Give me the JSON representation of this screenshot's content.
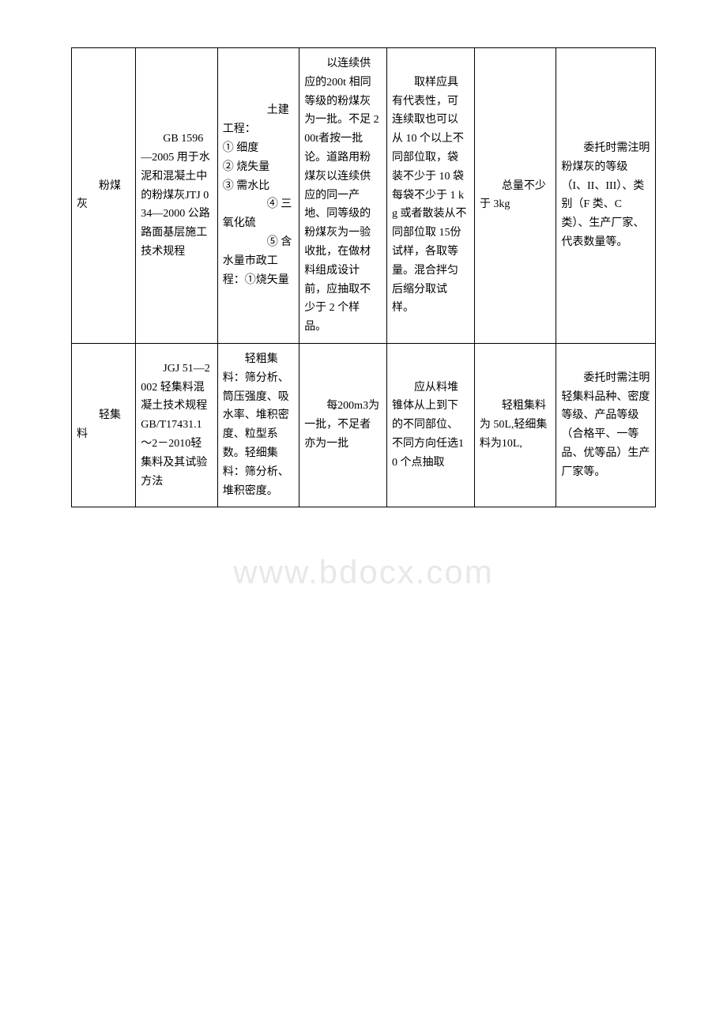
{
  "watermark": "www.bdocx.com",
  "table": {
    "columns_count": 7,
    "border_color": "#000000",
    "background_color": "#ffffff",
    "font_size": 14,
    "line_height": 1.7,
    "column_widths_pct": [
      11,
      14,
      14,
      15,
      15,
      14,
      17
    ],
    "rows": [
      {
        "cells": [
          {
            "text_indent": "粉煤灰"
          },
          {
            "text_indent": "GB 1596—2005 用于水泥和混凝土中的粉煤灰JTJ 034—2000 公路路面基层施工技术规程"
          },
          {
            "text_indent": "土建工程：\n① 细度\n② 烧失量\n③ 需水比",
            "extra_indent": "④ 三氧化硫",
            "extra_indent2": "⑤ 含水量市政工程：①烧矢量"
          },
          {
            "text_indent": "以连续供应的200t 相同等级的粉煤灰为一批。不足 200t者按一批论。道路用粉煤灰以连续供应的同一产地、同等级的粉煤灰为一验收批，在做材料组成设计前，应抽取不少于 2 个样品。"
          },
          {
            "text_indent": "取样应具有代表性，可连续取也可以从 10 个以上不同部位取，袋装不少于 10 袋每袋不少于 1 kg 或者散装从不同部位取 15份试样，各取等量。混合拌匀后缩分取试样。"
          },
          {
            "text_indent": "总量不少于 3kg"
          },
          {
            "text_indent": "委托时需注明粉煤灰的等级（I、II、III）、类别（F 类、C 类）、生产厂家、代表数量等。"
          }
        ]
      },
      {
        "cells": [
          {
            "text_indent": "轻集料"
          },
          {
            "text_indent": "JGJ 51—2002 轻集料混凝土技术规程GB/T17431.1～2－2010轻集料及其试验方法"
          },
          {
            "text_indent": "轻粗集料：筛分析、筒压强度、吸水率、堆积密度、粒型系数。轻细集料：筛分析、堆积密度。"
          },
          {
            "text_indent": "每200m3为一批，不足者亦为一批"
          },
          {
            "text_indent": "应从料堆锥体从上到下的不同部位、不同方向任选10 个点抽取"
          },
          {
            "text_indent": "轻粗集料为 50L,轻细集料为10L,"
          },
          {
            "text_indent": "委托时需注明轻集料品种、密度等级、产品等级（合格平、一等品、优等品）生产厂家等。"
          }
        ]
      }
    ]
  }
}
